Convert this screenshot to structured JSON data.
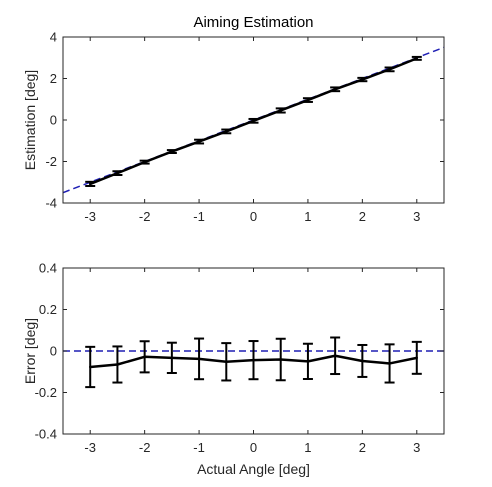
{
  "chart_data": [
    {
      "type": "line",
      "title": "Aiming Estimation",
      "xlabel": "",
      "ylabel": "Estimation [deg]",
      "xlim": [
        -3.5,
        3.5
      ],
      "ylim": [
        -4,
        4
      ],
      "x_ticks": [
        -3,
        -2,
        -1,
        0,
        1,
        2,
        3
      ],
      "x_tick_labels": [
        "-3",
        "-2",
        "-1",
        "0",
        "1",
        "2",
        "3"
      ],
      "y_ticks": [
        -4,
        -2,
        0,
        2,
        4
      ],
      "y_tick_labels": [
        "-4",
        "-2",
        "0",
        "2",
        "4"
      ],
      "grid": false,
      "reference_line": {
        "style": "dashed",
        "color": "#1f1fb4",
        "x": [
          -3.5,
          3.5
        ],
        "y": [
          -3.5,
          3.5
        ]
      },
      "series": [
        {
          "color": "#000000",
          "x": [
            -3,
            -2.5,
            -2,
            -1.5,
            -1,
            -0.5,
            0,
            0.5,
            1,
            1.5,
            2,
            2.5,
            3
          ],
          "y": [
            -3.08,
            -2.56,
            -2.03,
            -1.52,
            -1.04,
            -0.55,
            -0.04,
            0.46,
            0.96,
            1.48,
            1.95,
            2.44,
            2.97
          ],
          "error": [
            0.1,
            0.09,
            0.07,
            0.07,
            0.09,
            0.09,
            0.09,
            0.1,
            0.09,
            0.09,
            0.08,
            0.09,
            0.07
          ]
        }
      ]
    },
    {
      "type": "line",
      "title": "",
      "xlabel": "Actual Angle [deg]",
      "ylabel": "Error [deg]",
      "xlim": [
        -3.5,
        3.5
      ],
      "ylim": [
        -0.4,
        0.4
      ],
      "x_ticks": [
        -3,
        -2,
        -1,
        0,
        1,
        2,
        3
      ],
      "x_tick_labels": [
        "-3",
        "-2",
        "-1",
        "0",
        "1",
        "2",
        "3"
      ],
      "y_ticks": [
        -0.4,
        -0.2,
        0,
        0.2,
        0.4
      ],
      "y_tick_labels": [
        "-0.4",
        "-0.2",
        "0",
        "0.2",
        "0.4"
      ],
      "grid": false,
      "reference_line": {
        "style": "dashed",
        "color": "#1f1fb4",
        "x": [
          -3.5,
          3.5
        ],
        "y": [
          0,
          0
        ]
      },
      "series": [
        {
          "color": "#000000",
          "x": [
            -3,
            -2.5,
            -2,
            -1.5,
            -1,
            -0.5,
            0,
            0.5,
            1,
            1.5,
            2,
            2.5,
            3
          ],
          "y": [
            -0.077,
            -0.065,
            -0.028,
            -0.033,
            -0.038,
            -0.052,
            -0.044,
            -0.041,
            -0.05,
            -0.023,
            -0.048,
            -0.06,
            -0.033
          ],
          "error": [
            0.097,
            0.087,
            0.075,
            0.073,
            0.098,
            0.09,
            0.092,
            0.1,
            0.085,
            0.088,
            0.077,
            0.092,
            0.077
          ]
        }
      ]
    }
  ]
}
